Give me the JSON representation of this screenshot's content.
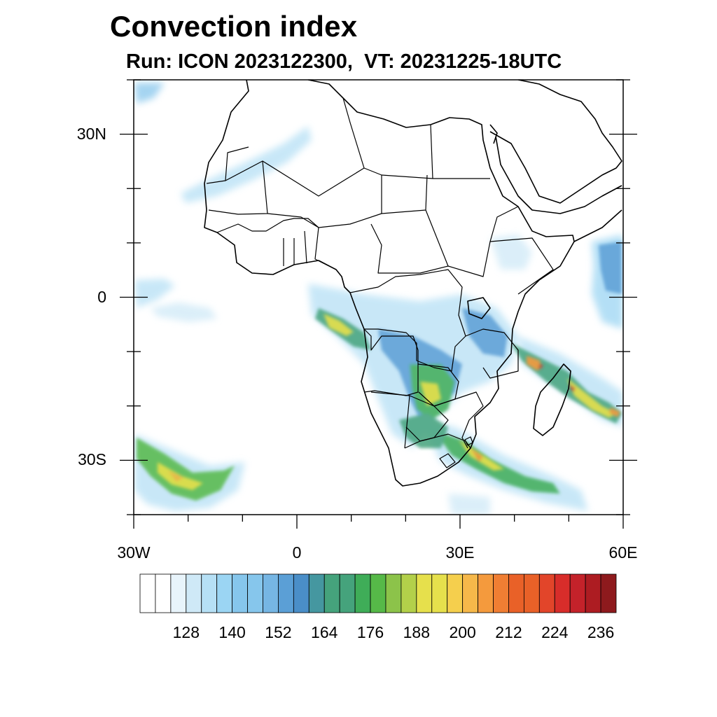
{
  "title": "Convection index",
  "subtitle": "Run: ICON 2023122300,  VT: 20231225-18UTC",
  "map": {
    "region": "Africa",
    "lon_range": [
      -30,
      60
    ],
    "lat_range": [
      -40,
      40
    ],
    "x_ticks": [
      {
        "lon": -30,
        "label": "30W"
      },
      {
        "lon": 0,
        "label": "0"
      },
      {
        "lon": 30,
        "label": "30E"
      },
      {
        "lon": 60,
        "label": "60E"
      }
    ],
    "y_ticks": [
      {
        "lat": 30,
        "label": "30N"
      },
      {
        "lat": 0,
        "label": "0"
      },
      {
        "lat": -30,
        "label": "30S"
      }
    ]
  },
  "colorbar": {
    "colors": [
      "#ffffff",
      "#e8f4fb",
      "#cfe9f7",
      "#b6e0f5",
      "#9bd5f3",
      "#86c6ec",
      "#76b6e4",
      "#5b9fd6",
      "#4a8ec8",
      "#4597a0",
      "#45a37c",
      "#3fad58",
      "#56b948",
      "#8cc34a",
      "#b3d04a",
      "#e6e04c",
      "#f5cf4d",
      "#f6b84a",
      "#f49a3d",
      "#f07e33",
      "#e96128",
      "#e2452a",
      "#d82d2a",
      "#c4222a",
      "#ad1c22",
      "#8e1a1d"
    ],
    "tick_labels": [
      {
        "index": 3,
        "label": "128"
      },
      {
        "index": 6,
        "label": "140"
      },
      {
        "index": 9,
        "label": "152"
      },
      {
        "index": 12,
        "label": "164"
      },
      {
        "index": 15,
        "label": "176"
      },
      {
        "index": 18,
        "label": "188"
      },
      {
        "index": 21,
        "label": "200"
      },
      {
        "index": 24,
        "label": "212"
      },
      {
        "index": 27,
        "label": "224"
      },
      {
        "index": 30,
        "label": "236"
      }
    ]
  },
  "colors": {
    "light": "#b6e0f5",
    "mid": "#5b9fd6",
    "green": "#3fad58",
    "yellow": "#e6e04c",
    "orange": "#f49a3d",
    "red": "#d82d2a"
  }
}
